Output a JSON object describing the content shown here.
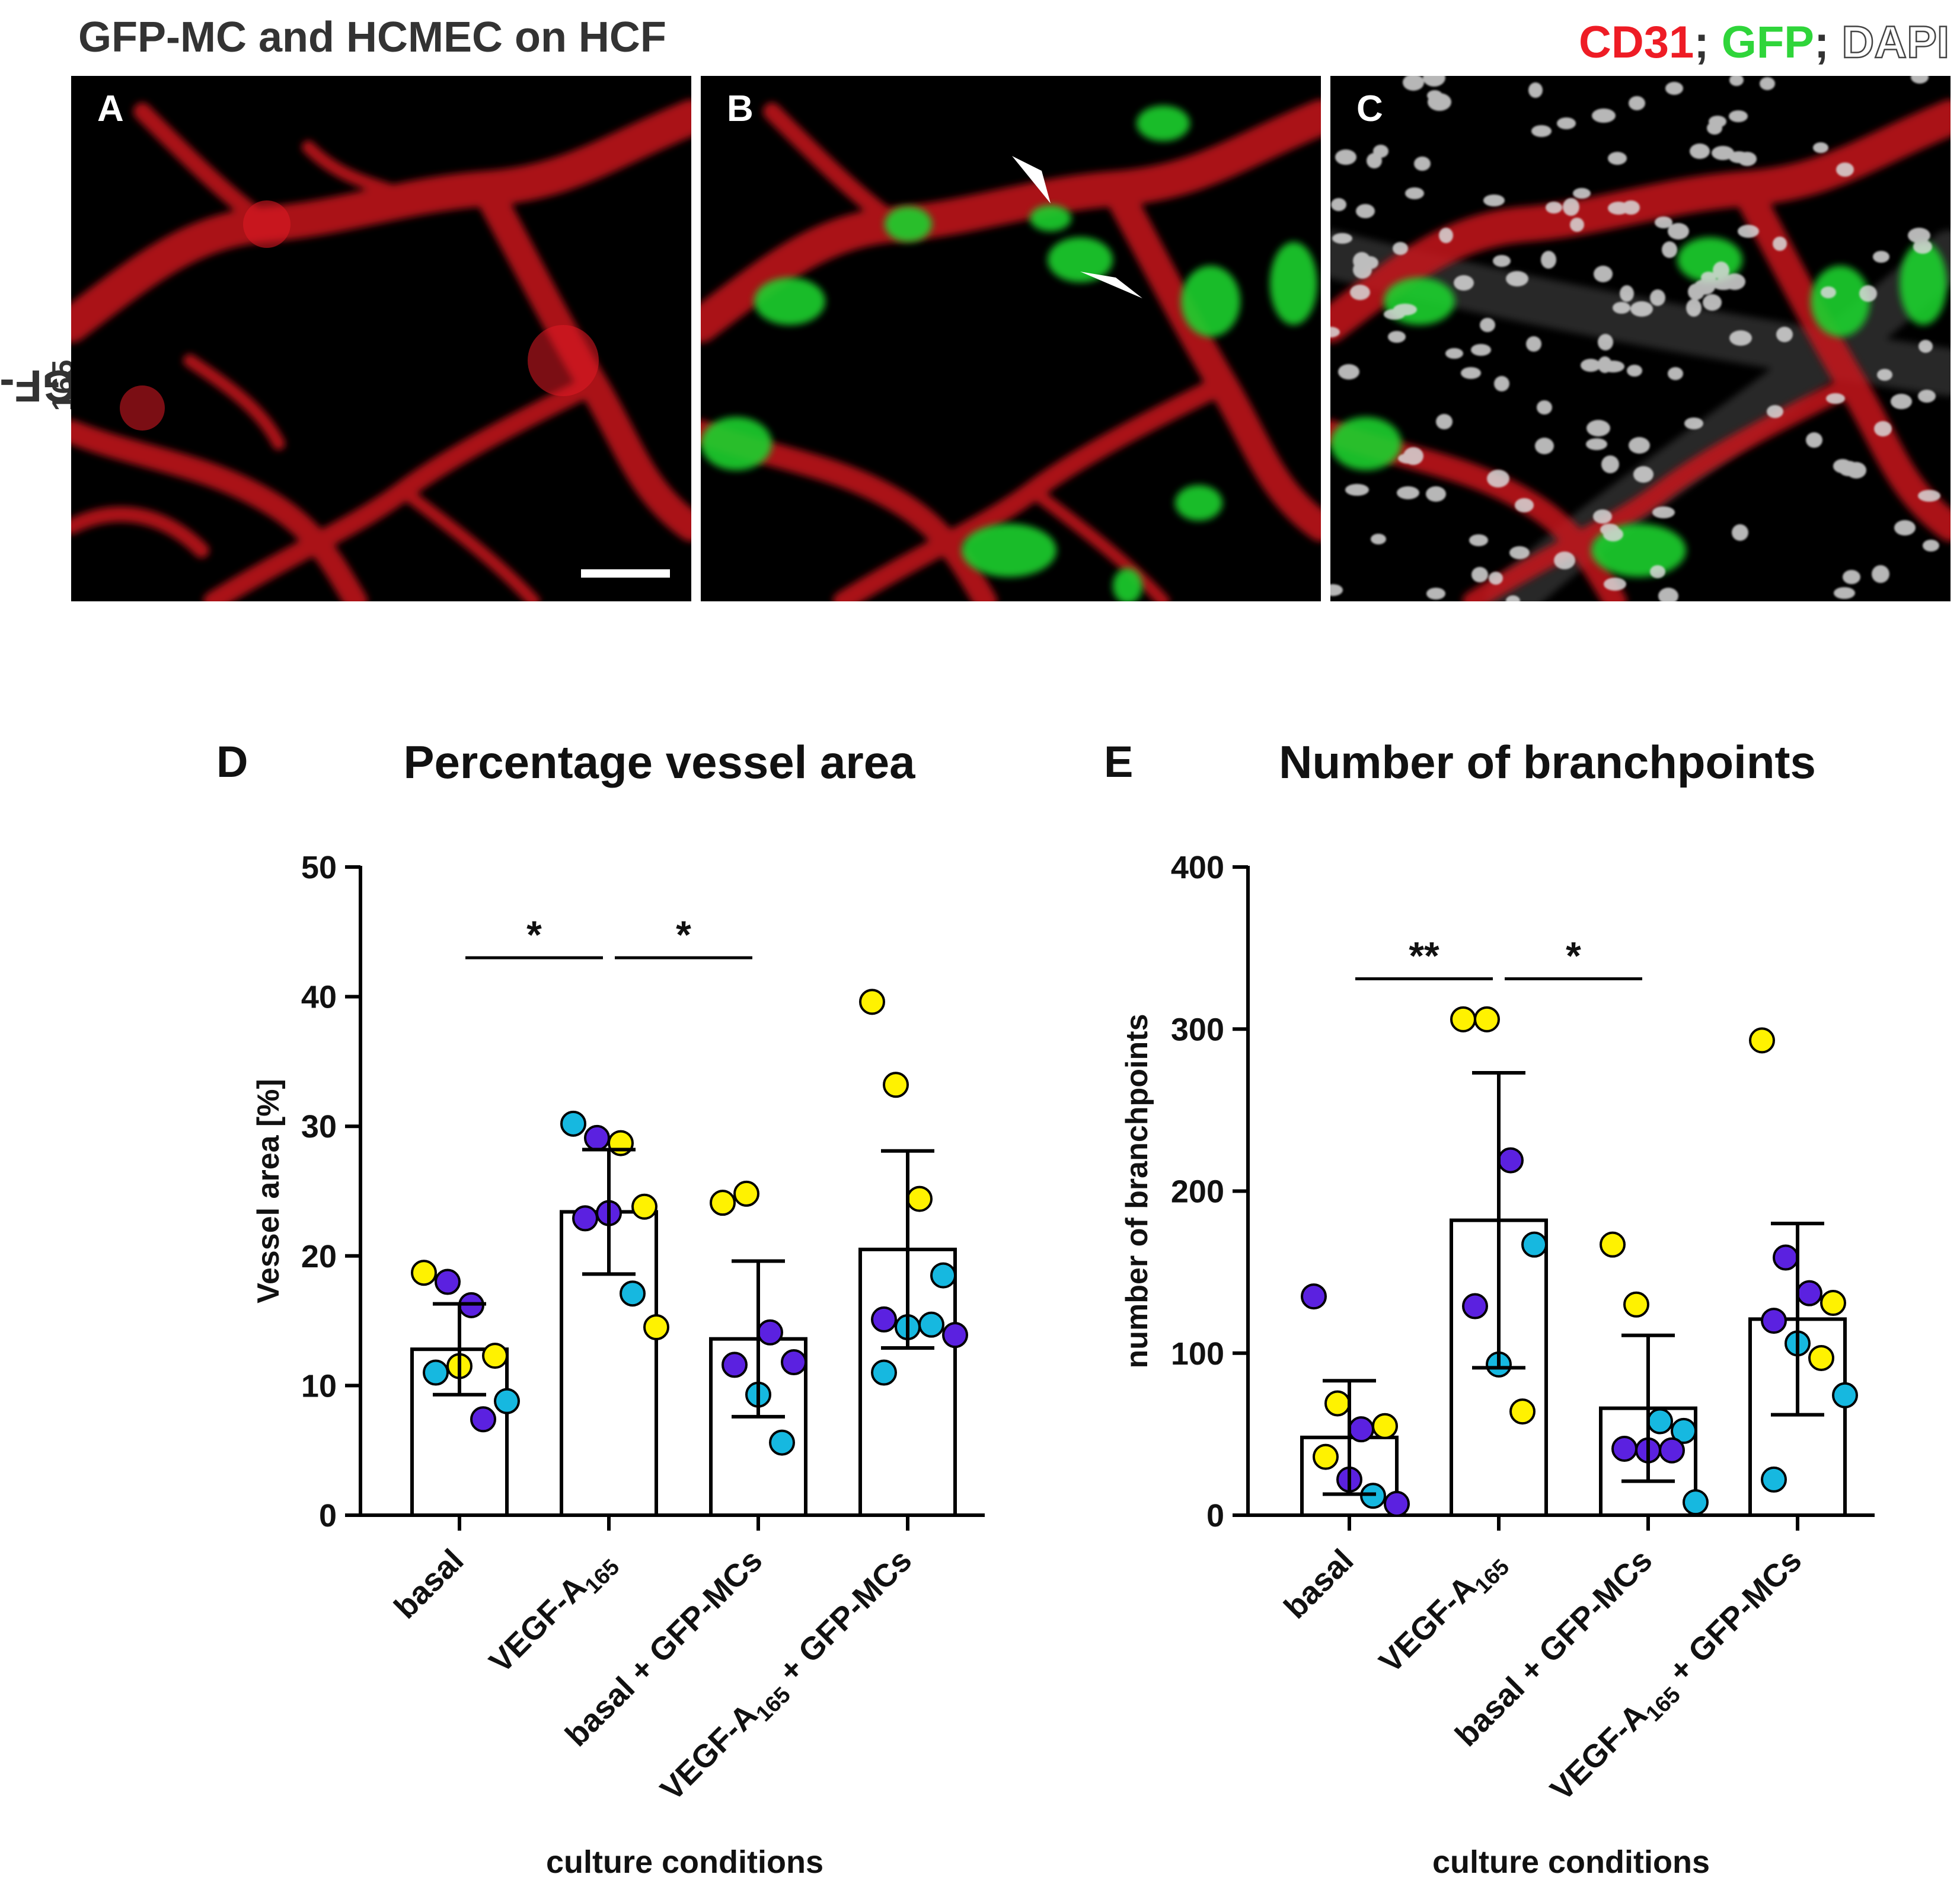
{
  "figure": {
    "title": "GFP-MC and HCMEC on HCF",
    "row_label_main": "VEGF-A",
    "row_label_sub": "165",
    "stains": [
      {
        "text": "CD31",
        "color": "#ee1c25"
      },
      {
        "text": "GFP",
        "color": "#2fd53a"
      },
      {
        "text": "DAPI",
        "color": "#ffffff"
      }
    ],
    "stain_separator": ";",
    "panels": [
      {
        "letter": "A",
        "channels": "CD31"
      },
      {
        "letter": "B",
        "channels": "CD31 + GFP"
      },
      {
        "letter": "C",
        "channels": "CD31 + GFP + DAPI"
      }
    ]
  },
  "chart_data": [
    {
      "panel": "D",
      "type": "bar",
      "title": "Percentage vessel area",
      "xlabel": "culture conditions",
      "ylabel": "Vessel area [%]",
      "ylim": [
        0,
        50
      ],
      "yticks": [
        0,
        10,
        20,
        30,
        40,
        50
      ],
      "categories": [
        {
          "main": "basal",
          "sub": "",
          "rest": ""
        },
        {
          "main": "VEGF-A",
          "sub": "165",
          "rest": ""
        },
        {
          "main": "basal + GFP-MCs",
          "sub": "",
          "rest": ""
        },
        {
          "main": "VEGF-A",
          "sub": "165",
          "rest": " + GFP-MCs"
        }
      ],
      "means": [
        12.8,
        23.4,
        13.6,
        20.5
      ],
      "sd": [
        3.5,
        4.8,
        6.0,
        7.6
      ],
      "points": [
        [
          [
            18.7,
            "yellow"
          ],
          [
            18.0,
            "purple"
          ],
          [
            16.2,
            "purple"
          ],
          [
            12.3,
            "yellow"
          ],
          [
            11.0,
            "cyan"
          ],
          [
            11.5,
            "yellow"
          ],
          [
            7.4,
            "purple"
          ],
          [
            8.8,
            "cyan"
          ]
        ],
        [
          [
            30.2,
            "cyan"
          ],
          [
            29.1,
            "purple"
          ],
          [
            28.7,
            "yellow"
          ],
          [
            23.8,
            "yellow"
          ],
          [
            22.9,
            "purple"
          ],
          [
            23.3,
            "purple"
          ],
          [
            17.1,
            "cyan"
          ],
          [
            14.5,
            "yellow"
          ]
        ],
        [
          [
            24.1,
            "yellow"
          ],
          [
            24.8,
            "yellow"
          ],
          [
            14.1,
            "purple"
          ],
          [
            11.8,
            "purple"
          ],
          [
            11.6,
            "purple"
          ],
          [
            9.3,
            "cyan"
          ],
          [
            5.6,
            "cyan"
          ]
        ],
        [
          [
            39.6,
            "yellow"
          ],
          [
            33.2,
            "yellow"
          ],
          [
            24.4,
            "yellow"
          ],
          [
            18.5,
            "cyan"
          ],
          [
            15.1,
            "purple"
          ],
          [
            14.5,
            "cyan"
          ],
          [
            14.7,
            "cyan"
          ],
          [
            13.9,
            "purple"
          ],
          [
            11.0,
            "cyan"
          ]
        ]
      ],
      "point_colors": {
        "yellow": "#fff200",
        "purple": "#5b21e0",
        "cyan": "#16b8e0"
      },
      "significance": [
        {
          "from": 0,
          "to": 1,
          "label": "*",
          "y": 43
        },
        {
          "from": 1,
          "to": 2,
          "label": "*",
          "y": 43
        }
      ]
    },
    {
      "panel": "E",
      "type": "bar",
      "title": "Number of branchpoints",
      "xlabel": "culture conditions",
      "ylabel": "number of branchpoints",
      "ylim": [
        0,
        400
      ],
      "yticks": [
        0,
        100,
        200,
        300,
        400
      ],
      "categories": [
        {
          "main": "basal",
          "sub": "",
          "rest": ""
        },
        {
          "main": "VEGF-A",
          "sub": "165",
          "rest": ""
        },
        {
          "main": "basal + GFP-MCs",
          "sub": "",
          "rest": ""
        },
        {
          "main": "VEGF-A",
          "sub": "165",
          "rest": " + GFP-MCs"
        }
      ],
      "means": [
        48,
        182,
        66,
        121
      ],
      "sd": [
        35,
        91,
        45,
        59
      ],
      "points": [
        [
          [
            135,
            "purple"
          ],
          [
            69,
            "yellow"
          ],
          [
            53,
            "purple"
          ],
          [
            55,
            "yellow"
          ],
          [
            36,
            "yellow"
          ],
          [
            22,
            "purple"
          ],
          [
            12,
            "cyan"
          ],
          [
            7,
            "purple"
          ]
        ],
        [
          [
            306,
            "yellow"
          ],
          [
            306,
            "yellow"
          ],
          [
            219,
            "purple"
          ],
          [
            167,
            "cyan"
          ],
          [
            129,
            "purple"
          ],
          [
            93,
            "cyan"
          ],
          [
            64,
            "yellow"
          ]
        ],
        [
          [
            167,
            "yellow"
          ],
          [
            130,
            "yellow"
          ],
          [
            58,
            "cyan"
          ],
          [
            52,
            "cyan"
          ],
          [
            41,
            "purple"
          ],
          [
            40,
            "purple"
          ],
          [
            40,
            "purple"
          ],
          [
            8,
            "cyan"
          ]
        ],
        [
          [
            293,
            "yellow"
          ],
          [
            159,
            "purple"
          ],
          [
            137,
            "purple"
          ],
          [
            131,
            "yellow"
          ],
          [
            120,
            "purple"
          ],
          [
            106,
            "cyan"
          ],
          [
            97,
            "yellow"
          ],
          [
            74,
            "cyan"
          ],
          [
            22,
            "cyan"
          ]
        ]
      ],
      "point_colors": {
        "yellow": "#fff200",
        "purple": "#5b21e0",
        "cyan": "#16b8e0"
      },
      "significance": [
        {
          "from": 0,
          "to": 1,
          "label": "**",
          "y": 331
        },
        {
          "from": 1,
          "to": 2,
          "label": "*",
          "y": 331
        }
      ]
    }
  ]
}
